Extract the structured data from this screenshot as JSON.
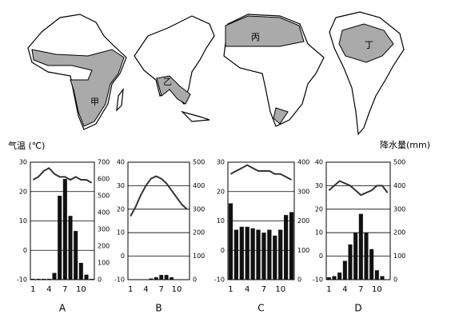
{
  "maps": {
    "labels": [
      "甲",
      "乙",
      "丙",
      "丁"
    ]
  },
  "y_label": "气温 (℃)",
  "y2_label": "降水量(mm)",
  "chart_data": [
    {
      "type": "combo",
      "label": "A",
      "categories": [
        "1",
        null,
        null,
        "4",
        null,
        null,
        "7",
        null,
        null,
        "10",
        null,
        null
      ],
      "ylim": [
        -10,
        30
      ],
      "yticks": [
        -10,
        0,
        10,
        20,
        30
      ],
      "y2lim": [
        0,
        700
      ],
      "y2ticks": [
        0,
        100,
        200,
        300,
        400,
        500,
        600,
        700
      ],
      "grid": true,
      "series": [
        {
          "type": "line",
          "color": "#333333",
          "values": [
            24,
            25,
            27,
            28,
            26,
            25,
            25,
            24,
            25,
            24,
            24,
            23
          ]
        },
        {
          "type": "bar",
          "axis": "y2",
          "color": "#111111",
          "values": [
            5,
            5,
            5,
            5,
            40,
            500,
            600,
            380,
            290,
            100,
            30,
            5
          ]
        }
      ]
    },
    {
      "type": "combo",
      "label": "B",
      "categories": [
        "1",
        null,
        null,
        "4",
        null,
        null,
        "7",
        null,
        null,
        "10",
        null,
        null
      ],
      "ylim": [
        -10,
        40
      ],
      "yticks": [
        -10,
        0,
        10,
        20,
        30,
        40
      ],
      "y2lim": [
        0,
        500
      ],
      "y2ticks": [
        0,
        100,
        200,
        300,
        400,
        500
      ],
      "grid": true,
      "series": [
        {
          "type": "line",
          "color": "#333333",
          "values": [
            17,
            21,
            26,
            30,
            33,
            34,
            33,
            31,
            28,
            25,
            22,
            20
          ]
        },
        {
          "type": "bar",
          "axis": "y2",
          "color": "#111111",
          "values": [
            0,
            0,
            0,
            0,
            5,
            10,
            20,
            20,
            10,
            0,
            0,
            0
          ]
        }
      ]
    },
    {
      "type": "combo",
      "label": "C",
      "categories": [
        "1",
        null,
        null,
        "4",
        null,
        null,
        "7",
        null,
        null,
        "10",
        null,
        null
      ],
      "ylim": [
        -10,
        30
      ],
      "yticks": [
        -10,
        0,
        10,
        20,
        30
      ],
      "y2lim": [
        0,
        400
      ],
      "y2ticks": [
        0,
        100,
        200,
        300,
        400
      ],
      "grid": true,
      "series": [
        {
          "type": "line",
          "color": "#333333",
          "values": [
            26,
            27,
            28,
            29,
            28,
            27,
            27,
            27,
            26,
            26,
            25,
            24
          ]
        },
        {
          "type": "bar",
          "axis": "y2",
          "color": "#111111",
          "values": [
            260,
            170,
            180,
            180,
            175,
            170,
            160,
            170,
            150,
            170,
            220,
            230
          ]
        }
      ]
    },
    {
      "type": "combo",
      "label": "D",
      "categories": [
        "1",
        null,
        null,
        "4",
        null,
        null,
        "7",
        null,
        null,
        "10",
        null,
        null
      ],
      "ylim": [
        -10,
        40
      ],
      "yticks": [
        -10,
        0,
        10,
        20,
        30,
        40
      ],
      "y2lim": [
        0,
        500
      ],
      "y2ticks": [
        0,
        100,
        200,
        300,
        400,
        500
      ],
      "grid": true,
      "series": [
        {
          "type": "line",
          "color": "#333333",
          "values": [
            28,
            30,
            32,
            31,
            30,
            28,
            26,
            27,
            28,
            30,
            30,
            27
          ]
        },
        {
          "type": "bar",
          "axis": "y2",
          "color": "#111111",
          "values": [
            10,
            15,
            30,
            80,
            150,
            200,
            280,
            200,
            130,
            40,
            15,
            0
          ]
        }
      ]
    }
  ]
}
